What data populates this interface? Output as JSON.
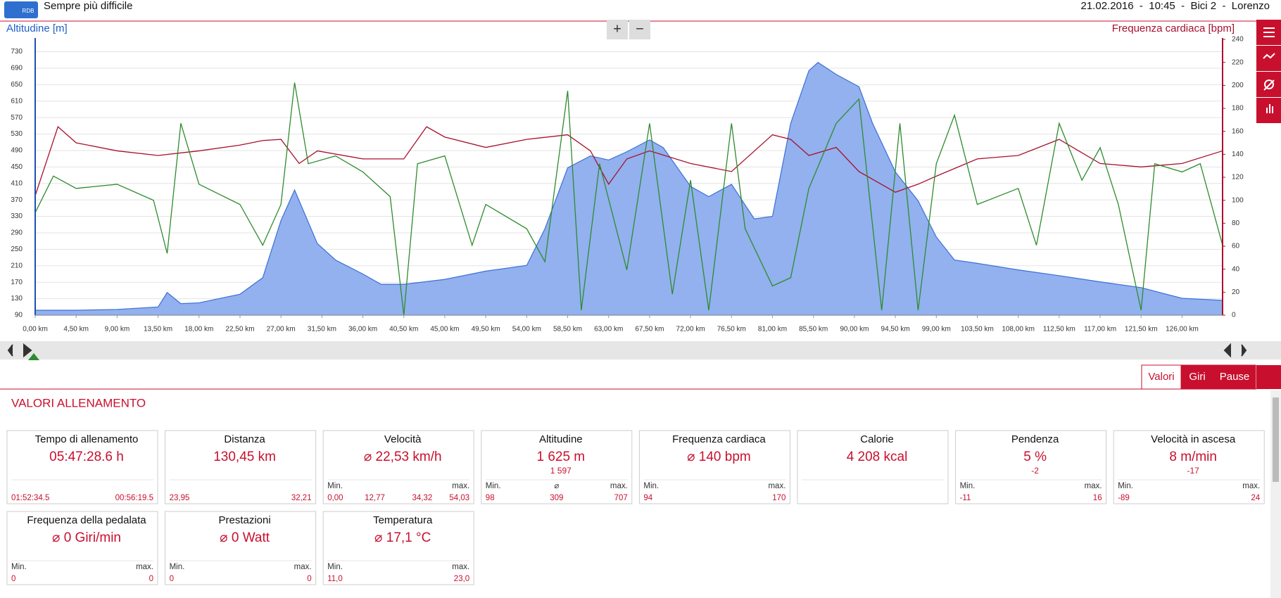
{
  "header": {
    "logo": "RDB",
    "title": "Sempre più difficile",
    "info": "21.02.2016  -  10:45  -  Bici 2  -  Lorenzo"
  },
  "zoom": {
    "in": "+",
    "out": "−"
  },
  "chart_data": {
    "type": "line",
    "grid": true,
    "xlim": [
      0,
      130.45
    ],
    "xticks": [
      {
        "value": 0,
        "label": "0,00 km"
      },
      {
        "value": 4.5,
        "label": "4,50 km"
      },
      {
        "value": 9,
        "label": "9,00 km"
      },
      {
        "value": 13.5,
        "label": "13,50 km"
      },
      {
        "value": 18,
        "label": "18,00 km"
      },
      {
        "value": 22.5,
        "label": "22,50 km"
      },
      {
        "value": 27,
        "label": "27,00 km"
      },
      {
        "value": 31.5,
        "label": "31,50 km"
      },
      {
        "value": 36,
        "label": "36,00 km"
      },
      {
        "value": 40.5,
        "label": "40,50 km"
      },
      {
        "value": 45,
        "label": "45,00 km"
      },
      {
        "value": 49.5,
        "label": "49,50 km"
      },
      {
        "value": 54,
        "label": "54,00 km"
      },
      {
        "value": 58.5,
        "label": "58,50 km"
      },
      {
        "value": 63,
        "label": "63,00 km"
      },
      {
        "value": 67.5,
        "label": "67,50 km"
      },
      {
        "value": 72,
        "label": "72,00 km"
      },
      {
        "value": 76.5,
        "label": "76,50 km"
      },
      {
        "value": 81,
        "label": "81,00 km"
      },
      {
        "value": 85.5,
        "label": "85,50 km"
      },
      {
        "value": 90,
        "label": "90,00 km"
      },
      {
        "value": 94.5,
        "label": "94,50 km"
      },
      {
        "value": 99,
        "label": "99,00 km"
      },
      {
        "value": 103.5,
        "label": "103,50 km"
      },
      {
        "value": 108,
        "label": "108,00 km"
      },
      {
        "value": 112.5,
        "label": "112,50 km"
      },
      {
        "value": 117,
        "label": "117,00 km"
      },
      {
        "value": 121.5,
        "label": "121,50 km"
      },
      {
        "value": 126,
        "label": "126,00 km"
      }
    ],
    "ylim": [
      90,
      760
    ],
    "yticks": [
      90,
      130,
      170,
      210,
      250,
      290,
      330,
      370,
      410,
      450,
      490,
      530,
      570,
      610,
      650,
      690,
      730
    ],
    "y2lim": [
      0,
      240
    ],
    "y2ticks": [
      0,
      20,
      40,
      60,
      80,
      100,
      120,
      140,
      160,
      180,
      200,
      220,
      240
    ],
    "series": [
      {
        "name": "Altitudine [m]",
        "type": "area",
        "color": "#3b6fd8",
        "fill": "#92b1ee",
        "x": [
          0,
          4.5,
          9,
          13.5,
          14.5,
          16,
          18,
          22.5,
          25,
          27,
          28.5,
          31,
          33,
          36,
          38,
          40.5,
          45,
          49.5,
          54,
          56,
          58.5,
          61,
          63,
          65,
          67.5,
          69,
          72,
          74,
          76.5,
          79,
          81,
          83,
          85,
          86,
          88,
          90.5,
          92,
          94.5,
          97,
          99,
          101,
          103.5,
          108,
          112.5,
          117,
          121.5,
          126,
          130.45
        ],
        "values": [
          102,
          102,
          104,
          110,
          145,
          118,
          120,
          141,
          181,
          320,
          394,
          264,
          224,
          190,
          165,
          165,
          177,
          197,
          211,
          300,
          448,
          477,
          467,
          487,
          516,
          497,
          403,
          378,
          408,
          324,
          330,
          556,
          684,
          704,
          675,
          645,
          556,
          438,
          368,
          280,
          224,
          216,
          200,
          186,
          171,
          157,
          131,
          126
        ]
      },
      {
        "name": "Frequenza cardiaca [bpm]",
        "axis": "y2",
        "color": "#a8102c",
        "x": [
          0,
          2.5,
          4.5,
          9,
          13.5,
          18,
          22.5,
          25,
          27,
          29,
          31,
          36,
          40.5,
          43,
          45,
          49.5,
          54,
          58.5,
          61,
          63,
          65,
          67.5,
          72,
          76.5,
          81,
          83,
          85,
          88,
          90.5,
          94.5,
          97,
          99,
          103.5,
          108,
          112.5,
          117,
          121.5,
          126,
          130.45
        ],
        "values": [
          104,
          164,
          150,
          143,
          139,
          143,
          148,
          152,
          153,
          132,
          143,
          136,
          136,
          164,
          155,
          146,
          153,
          157,
          143,
          114,
          136,
          143,
          132,
          125,
          157,
          153,
          139,
          146,
          125,
          107,
          114,
          121,
          136,
          139,
          153,
          132,
          129,
          132,
          143
        ]
      },
      {
        "color": "#2e8b2e",
        "x": [
          0,
          2,
          4.5,
          9,
          13,
          14.5,
          16,
          18,
          22.5,
          25,
          27,
          28.5,
          30,
          33,
          36,
          39,
          40.5,
          42,
          45,
          48,
          49.5,
          54,
          56,
          58.5,
          60,
          62,
          65,
          67.5,
          70,
          72,
          74,
          76.5,
          78,
          81,
          83,
          85,
          88,
          90.5,
          93,
          95,
          97,
          99,
          101,
          103.5,
          108,
          110,
          112.5,
          115,
          117,
          119,
          121.5,
          123,
          126,
          128,
          130.45
        ],
        "values": [
          339,
          428,
          398,
          408,
          369,
          240,
          556,
          408,
          359,
          260,
          359,
          655,
          458,
          477,
          438,
          378,
          90,
          458,
          477,
          260,
          359,
          300,
          220,
          635,
          102,
          458,
          200,
          556,
          141,
          418,
          102,
          556,
          300,
          161,
          181,
          398,
          556,
          615,
          102,
          556,
          102,
          458,
          576,
          359,
          398,
          260,
          556,
          418,
          497,
          359,
          102,
          458,
          438,
          458,
          260
        ]
      }
    ]
  },
  "tabs": [
    "Valori",
    "Giri",
    "Pause"
  ],
  "section_title": "VALORI ALLENAMENTO",
  "cards": [
    {
      "title": "Tempo di allenamento",
      "value": "05:47:28.6 h",
      "stats": [
        {
          "value": "01:52:34.5"
        },
        {
          "value": "00:56:19.5"
        }
      ]
    },
    {
      "title": "Distanza",
      "value": "130,45 km",
      "stats": [
        {
          "value": "23,95"
        },
        {
          "value": "32,21"
        }
      ]
    },
    {
      "title": "Velocità",
      "value": "⌀ 22,53 km/h",
      "stats": [
        {
          "label": "Min.",
          "value": "0,00"
        },
        {
          "value": "12,77"
        },
        {
          "value": "34,32"
        },
        {
          "label": "max.",
          "value": "54,03"
        }
      ]
    },
    {
      "title": "Altitudine",
      "value": "1 625 m",
      "sub": "1 597",
      "stats": [
        {
          "label": "Min.",
          "value": "98"
        },
        {
          "label": "⌀",
          "value": "309"
        },
        {
          "label": "max.",
          "value": "707"
        }
      ]
    },
    {
      "title": "Frequenza cardiaca",
      "value": "⌀ 140 bpm",
      "stats": [
        {
          "label": "Min.",
          "value": "94"
        },
        {
          "label": "max.",
          "value": "170"
        }
      ]
    },
    {
      "title": "Calorie",
      "value": "4 208 kcal",
      "stats": []
    },
    {
      "title": "Pendenza",
      "value": "5 %",
      "sub": "-2",
      "stats": [
        {
          "label": "Min.",
          "value": "-11"
        },
        {
          "label": "max.",
          "value": "16"
        }
      ]
    },
    {
      "title": "Velocità in ascesa",
      "value": "8 m/min",
      "sub": "-17",
      "stats": [
        {
          "label": "Min.",
          "value": "-89"
        },
        {
          "label": "max.",
          "value": "24"
        }
      ]
    },
    {
      "title": "Frequenza della pedalata",
      "value": "⌀ 0 Giri/min",
      "stats": [
        {
          "label": "Min.",
          "value": "0"
        },
        {
          "label": "max.",
          "value": "0"
        }
      ]
    },
    {
      "title": "Prestazioni",
      "value": "⌀ 0 Watt",
      "stats": [
        {
          "label": "Min.",
          "value": "0"
        },
        {
          "label": "max.",
          "value": "0"
        }
      ]
    },
    {
      "title": "Temperatura",
      "value": "⌀ 17,1 °C",
      "stats": [
        {
          "label": "Min.",
          "value": "11,0"
        },
        {
          "label": "max.",
          "value": "23,0"
        }
      ]
    }
  ]
}
